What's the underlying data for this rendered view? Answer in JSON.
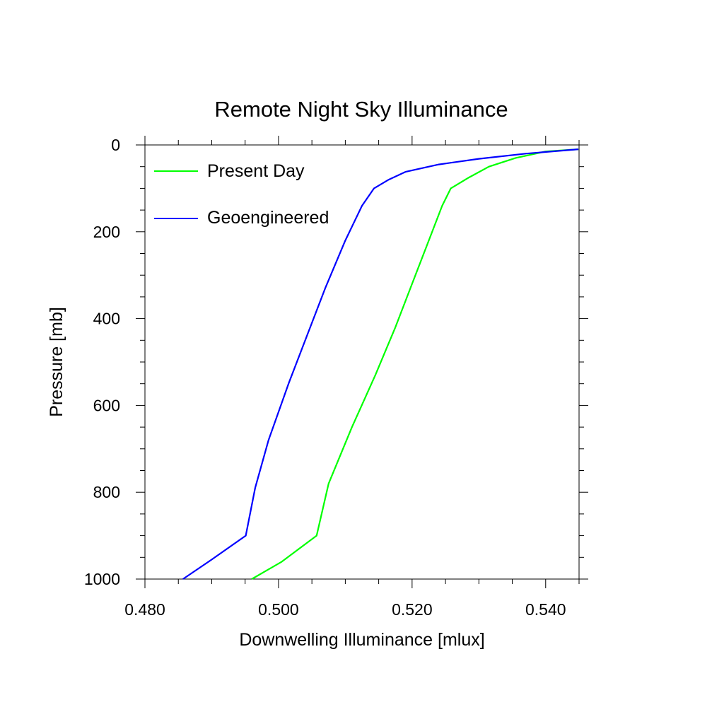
{
  "chart_data": {
    "type": "line",
    "title": "Remote Night Sky Illuminance",
    "xlabel": "Downwelling Illuminance [mlux]",
    "ylabel": "Pressure [mb]",
    "xlim": [
      0.48,
      0.545
    ],
    "ylim": [
      0,
      1000
    ],
    "y_inverted": true,
    "x_ticks": [
      "0.480",
      "0.500",
      "0.520",
      "0.540"
    ],
    "y_ticks": [
      "0",
      "200",
      "400",
      "600",
      "800",
      "1000"
    ],
    "grid": false,
    "legend_position": "top-left",
    "series": [
      {
        "name": "Present Day",
        "color": "#00ff00",
        "points": [
          [
            0.5449,
            10
          ],
          [
            0.54,
            15
          ],
          [
            0.5355,
            30
          ],
          [
            0.5315,
            50
          ],
          [
            0.5285,
            75
          ],
          [
            0.5258,
            100
          ],
          [
            0.5245,
            140
          ],
          [
            0.5225,
            220
          ],
          [
            0.52,
            320
          ],
          [
            0.5175,
            420
          ],
          [
            0.5145,
            530
          ],
          [
            0.511,
            650
          ],
          [
            0.5075,
            780
          ],
          [
            0.5057,
            900
          ],
          [
            0.5005,
            960
          ],
          [
            0.496,
            1000
          ]
        ]
      },
      {
        "name": "Geoengineered",
        "color": "#0000ff",
        "points": [
          [
            0.5449,
            10
          ],
          [
            0.537,
            20
          ],
          [
            0.53,
            32
          ],
          [
            0.524,
            45
          ],
          [
            0.519,
            62
          ],
          [
            0.5165,
            80
          ],
          [
            0.5143,
            100
          ],
          [
            0.5125,
            140
          ],
          [
            0.51,
            220
          ],
          [
            0.507,
            330
          ],
          [
            0.5045,
            430
          ],
          [
            0.5015,
            550
          ],
          [
            0.4985,
            680
          ],
          [
            0.4965,
            790
          ],
          [
            0.4951,
            900
          ],
          [
            0.49,
            955
          ],
          [
            0.4857,
            1000
          ]
        ]
      }
    ]
  }
}
